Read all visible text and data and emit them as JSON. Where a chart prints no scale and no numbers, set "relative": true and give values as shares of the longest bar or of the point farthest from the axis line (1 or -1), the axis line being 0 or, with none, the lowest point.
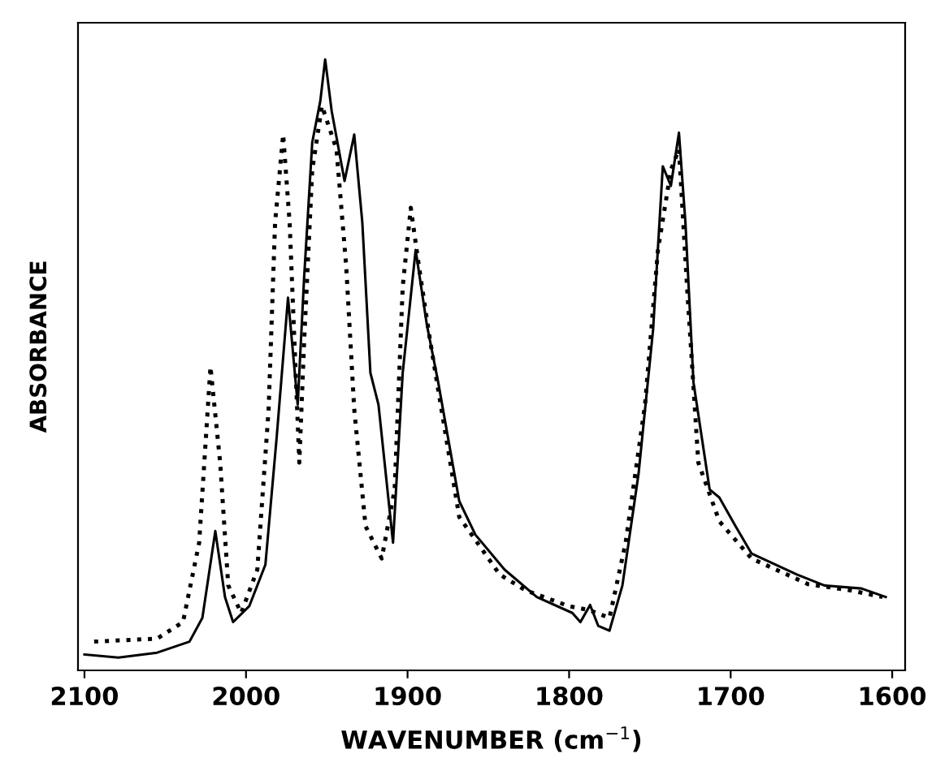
{
  "chart_data": {
    "type": "line",
    "relative": true,
    "xlabel": "WAVENUMBER (cm$^{−1}$)",
    "ylabel": "ABSORBANCE",
    "xlim": [
      2104,
      1592
    ],
    "xticks": [
      2100,
      2000,
      1900,
      1800,
      1700,
      1600
    ],
    "marker": "none",
    "series": [
      {
        "color": "#000000",
        "line_style": "solid",
        "x": [
          2100,
          2079,
          2055,
          2035,
          2027,
          2019,
          2013,
          2008,
          1998,
          1988,
          1981,
          1974,
          1968,
          1964,
          1959,
          1954,
          1951,
          1947,
          1939,
          1933,
          1928,
          1923,
          1918,
          1909,
          1903,
          1895,
          1888,
          1881,
          1868,
          1858,
          1840,
          1820,
          1798,
          1793,
          1787,
          1782,
          1775,
          1767,
          1757,
          1748,
          1742,
          1737,
          1732,
          1728,
          1723,
          1713,
          1707,
          1697,
          1687,
          1659,
          1642,
          1619,
          1604
        ],
        "values": [
          0.026,
          0.021,
          0.029,
          0.047,
          0.086,
          0.228,
          0.12,
          0.079,
          0.105,
          0.173,
          0.382,
          0.61,
          0.435,
          0.644,
          0.864,
          0.932,
          1.0,
          0.916,
          0.801,
          0.877,
          0.733,
          0.487,
          0.435,
          0.209,
          0.487,
          0.688,
          0.565,
          0.471,
          0.277,
          0.222,
          0.165,
          0.12,
          0.094,
          0.079,
          0.107,
          0.073,
          0.065,
          0.139,
          0.322,
          0.558,
          0.825,
          0.793,
          0.88,
          0.733,
          0.471,
          0.296,
          0.283,
          0.236,
          0.191,
          0.157,
          0.139,
          0.134,
          0.12
        ]
      },
      {
        "color": "#000000",
        "line_style": "dotted",
        "x": [
          2094,
          2055,
          2039,
          2029,
          2022,
          2016,
          2011,
          2003,
          1993,
          1986,
          1982,
          1977,
          1973,
          1969,
          1967,
          1964,
          1959,
          1953,
          1944,
          1938,
          1933,
          1926,
          1916,
          1908,
          1903,
          1898,
          1893,
          1886,
          1868,
          1843,
          1827,
          1800,
          1788,
          1775,
          1765,
          1753,
          1745,
          1737,
          1732,
          1727,
          1720,
          1707,
          1687,
          1652,
          1626,
          1606
        ],
        "values": [
          0.047,
          0.052,
          0.079,
          0.209,
          0.497,
          0.34,
          0.139,
          0.094,
          0.165,
          0.427,
          0.733,
          0.877,
          0.733,
          0.471,
          0.34,
          0.539,
          0.819,
          0.924,
          0.853,
          0.662,
          0.427,
          0.236,
          0.183,
          0.296,
          0.628,
          0.757,
          0.662,
          0.539,
          0.251,
          0.157,
          0.131,
          0.105,
          0.099,
          0.086,
          0.209,
          0.435,
          0.688,
          0.819,
          0.853,
          0.628,
          0.34,
          0.244,
          0.183,
          0.141,
          0.131,
          0.12
        ]
      }
    ]
  }
}
